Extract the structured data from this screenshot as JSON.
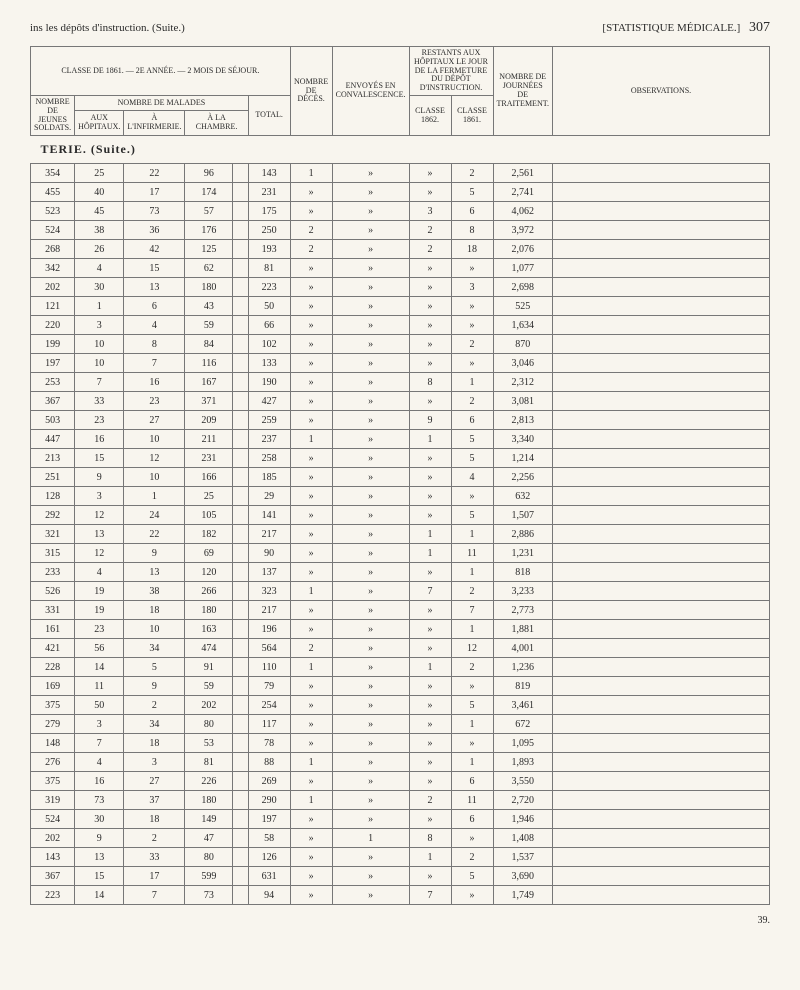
{
  "header": {
    "left": "ins les dépôts d'instruction. (Suite.)",
    "right_bracket": "[STATISTIQUE MÉDICALE.]",
    "page": "307"
  },
  "table_headers": {
    "group1": "CLASSE DE 1861. — 2e ANNÉE. — 2 MOIS DE SÉJOUR.",
    "group2": "RESTANTS aux hôpitaux le jour de la fermeture du dépôt d'instruction.",
    "group3": "NOMBRE de journées de traitement.",
    "obs": "OBSERVATIONS.",
    "col_nombre_soldats": "NOMBRE de jeunes soldats.",
    "col_malades": "NOMBRE DE MALADES",
    "col_aux_hop": "aux hôpitaux.",
    "col_infirm": "à l'infirmerie.",
    "col_chambre": "à la chambre.",
    "col_total": "TOTAL.",
    "col_nombre_deces": "NOMBRE de décès.",
    "col_envoyes": "ENVOYÉS en convalescence.",
    "col_classe_1862": "Classe 1862.",
    "col_classe_1861": "Classe 1861."
  },
  "section": "TERIE. (Suite.)",
  "footer": "39.",
  "rows": [
    {
      "c": [
        "354",
        "25",
        "22",
        "96",
        "143",
        "1",
        "»",
        "»",
        "2",
        "2,561",
        ""
      ]
    },
    {
      "c": [
        "455",
        "40",
        "17",
        "174",
        "231",
        "»",
        "»",
        "»",
        "5",
        "2,741",
        ""
      ]
    },
    {
      "c": [
        "523",
        "45",
        "73",
        "57",
        "175",
        "»",
        "»",
        "3",
        "6",
        "4,062",
        ""
      ]
    },
    {
      "c": [
        "524",
        "38",
        "36",
        "176",
        "250",
        "2",
        "»",
        "2",
        "8",
        "3,972",
        ""
      ]
    },
    {
      "c": [
        "268",
        "26",
        "42",
        "125",
        "193",
        "2",
        "»",
        "2",
        "18",
        "2,076",
        ""
      ]
    },
    {
      "c": [
        "342",
        "4",
        "15",
        "62",
        "81",
        "»",
        "»",
        "»",
        "»",
        "1,077",
        ""
      ]
    },
    {
      "c": [
        "202",
        "30",
        "13",
        "180",
        "223",
        "»",
        "»",
        "»",
        "3",
        "2,698",
        ""
      ]
    },
    {
      "c": [
        "121",
        "1",
        "6",
        "43",
        "50",
        "»",
        "»",
        "»",
        "»",
        "525",
        ""
      ]
    },
    {
      "c": [
        "220",
        "3",
        "4",
        "59",
        "66",
        "»",
        "»",
        "»",
        "»",
        "1,634",
        ""
      ]
    },
    {
      "c": [
        "199",
        "10",
        "8",
        "84",
        "102",
        "»",
        "»",
        "»",
        "2",
        "870",
        ""
      ]
    },
    {
      "c": [
        "197",
        "10",
        "7",
        "116",
        "133",
        "»",
        "»",
        "»",
        "»",
        "3,046",
        ""
      ]
    },
    {
      "c": [
        "253",
        "7",
        "16",
        "167",
        "190",
        "»",
        "»",
        "8",
        "1",
        "2,312",
        ""
      ]
    },
    {
      "c": [
        "367",
        "33",
        "23",
        "371",
        "427",
        "»",
        "»",
        "»",
        "2",
        "3,081",
        ""
      ]
    },
    {
      "c": [
        "503",
        "23",
        "27",
        "209",
        "259",
        "»",
        "»",
        "9",
        "6",
        "2,813",
        ""
      ]
    },
    {
      "c": [
        "447",
        "16",
        "10",
        "211",
        "237",
        "1",
        "»",
        "1",
        "5",
        "3,340",
        ""
      ]
    },
    {
      "c": [
        "213",
        "15",
        "12",
        "231",
        "258",
        "»",
        "»",
        "»",
        "5",
        "1,214",
        ""
      ]
    },
    {
      "c": [
        "251",
        "9",
        "10",
        "166",
        "185",
        "»",
        "»",
        "»",
        "4",
        "2,256",
        ""
      ]
    },
    {
      "c": [
        "128",
        "3",
        "1",
        "25",
        "29",
        "»",
        "»",
        "»",
        "»",
        "632",
        ""
      ]
    },
    {
      "c": [
        "292",
        "12",
        "24",
        "105",
        "141",
        "»",
        "»",
        "»",
        "5",
        "1,507",
        ""
      ]
    },
    {
      "c": [
        "321",
        "13",
        "22",
        "182",
        "217",
        "»",
        "»",
        "1",
        "1",
        "2,886",
        ""
      ]
    },
    {
      "c": [
        "315",
        "12",
        "9",
        "69",
        "90",
        "»",
        "»",
        "1",
        "11",
        "1,231",
        ""
      ]
    },
    {
      "c": [
        "233",
        "4",
        "13",
        "120",
        "137",
        "»",
        "»",
        "»",
        "1",
        "818",
        ""
      ]
    },
    {
      "c": [
        "526",
        "19",
        "38",
        "266",
        "323",
        "1",
        "»",
        "7",
        "2",
        "3,233",
        ""
      ]
    },
    {
      "c": [
        "331",
        "19",
        "18",
        "180",
        "217",
        "»",
        "»",
        "»",
        "7",
        "2,773",
        ""
      ]
    },
    {
      "c": [
        "161",
        "23",
        "10",
        "163",
        "196",
        "»",
        "»",
        "»",
        "1",
        "1,881",
        ""
      ]
    },
    {
      "c": [
        "421",
        "56",
        "34",
        "474",
        "564",
        "2",
        "»",
        "»",
        "12",
        "4,001",
        ""
      ]
    },
    {
      "c": [
        "228",
        "14",
        "5",
        "91",
        "110",
        "1",
        "»",
        "1",
        "2",
        "1,236",
        ""
      ]
    },
    {
      "c": [
        "169",
        "11",
        "9",
        "59",
        "79",
        "»",
        "»",
        "»",
        "»",
        "819",
        ""
      ]
    },
    {
      "c": [
        "375",
        "50",
        "2",
        "202",
        "254",
        "»",
        "»",
        "»",
        "5",
        "3,461",
        ""
      ]
    },
    {
      "c": [
        "279",
        "3",
        "34",
        "80",
        "117",
        "»",
        "»",
        "»",
        "1",
        "672",
        ""
      ]
    },
    {
      "c": [
        "148",
        "7",
        "18",
        "53",
        "78",
        "»",
        "»",
        "»",
        "»",
        "1,095",
        ""
      ]
    },
    {
      "c": [
        "276",
        "4",
        "3",
        "81",
        "88",
        "1",
        "»",
        "»",
        "1",
        "1,893",
        ""
      ]
    },
    {
      "c": [
        "375",
        "16",
        "27",
        "226",
        "269",
        "»",
        "»",
        "»",
        "6",
        "3,550",
        ""
      ]
    },
    {
      "c": [
        "319",
        "73",
        "37",
        "180",
        "290",
        "1",
        "»",
        "2",
        "11",
        "2,720",
        ""
      ]
    },
    {
      "c": [
        "524",
        "30",
        "18",
        "149",
        "197",
        "»",
        "»",
        "»",
        "6",
        "1,946",
        ""
      ]
    },
    {
      "c": [
        "202",
        "9",
        "2",
        "47",
        "58",
        "»",
        "1",
        "8",
        "»",
        "1,408",
        ""
      ]
    },
    {
      "c": [
        "143",
        "13",
        "33",
        "80",
        "126",
        "»",
        "»",
        "1",
        "2",
        "1,537",
        ""
      ]
    },
    {
      "c": [
        "367",
        "15",
        "17",
        "599",
        "631",
        "»",
        "»",
        "»",
        "5",
        "3,690",
        ""
      ]
    },
    {
      "c": [
        "223",
        "14",
        "7",
        "73",
        "94",
        "»",
        "»",
        "7",
        "»",
        "1,749",
        ""
      ]
    }
  ]
}
